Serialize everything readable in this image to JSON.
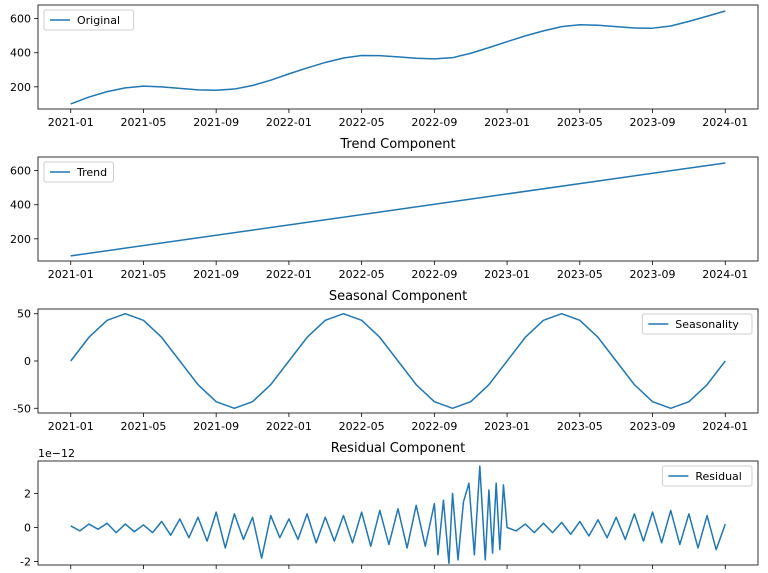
{
  "figure": {
    "line_color": "#1f77b4",
    "x_ticks": [
      "2021-01",
      "2021-05",
      "2021-09",
      "2022-01",
      "2022-05",
      "2022-09",
      "2023-01",
      "2023-05",
      "2023-09",
      "2024-01"
    ],
    "x_ticks_num": [
      0,
      4,
      8,
      12,
      16,
      20,
      24,
      28,
      32,
      36
    ]
  },
  "chart_data": [
    {
      "type": "line",
      "title": "Original",
      "xlabel": "",
      "ylabel": "",
      "ylim": [
        70,
        680
      ],
      "y_ticks": [
        200,
        400,
        600
      ],
      "legend": "top-left",
      "series": [
        {
          "name": "Original",
          "x": [
            0,
            1,
            2,
            3,
            4,
            5,
            6,
            7,
            8,
            9,
            10,
            11,
            12,
            13,
            14,
            15,
            16,
            17,
            18,
            19,
            20,
            21,
            22,
            23,
            24,
            25,
            26,
            27,
            28,
            29,
            30,
            31,
            32,
            33,
            34,
            35,
            36
          ],
          "values": [
            100,
            140,
            172,
            194,
            204,
            200,
            191,
            182,
            180,
            187,
            208,
            239,
            276,
            311,
            343,
            369,
            384,
            383,
            376,
            368,
            364,
            371,
            397,
            430,
            465,
            499,
            528,
            553,
            564,
            561,
            553,
            545,
            544,
            557,
            584,
            614,
            645
          ]
        }
      ]
    },
    {
      "type": "line",
      "title": "Trend Component",
      "xlabel": "",
      "ylabel": "",
      "ylim": [
        70,
        680
      ],
      "y_ticks": [
        200,
        400,
        600
      ],
      "legend": "top-left",
      "series": [
        {
          "name": "Trend",
          "x": [
            0,
            36
          ],
          "values": [
            100,
            645
          ]
        }
      ]
    },
    {
      "type": "line",
      "title": "Seasonal Component",
      "xlabel": "",
      "ylabel": "",
      "ylim": [
        -55,
        55
      ],
      "y_ticks": [
        -50,
        0,
        50
      ],
      "legend": "top-right",
      "series": [
        {
          "name": "Seasonality",
          "x": [
            0,
            1,
            2,
            3,
            4,
            5,
            6,
            7,
            8,
            9,
            10,
            11,
            12,
            13,
            14,
            15,
            16,
            17,
            18,
            19,
            20,
            21,
            22,
            23,
            24,
            25,
            26,
            27,
            28,
            29,
            30,
            31,
            32,
            33,
            34,
            35,
            36
          ],
          "values": [
            0,
            25,
            43,
            50,
            43,
            25,
            0,
            -25,
            -43,
            -50,
            -43,
            -25,
            0,
            25,
            43,
            50,
            43,
            25,
            0,
            -25,
            -43,
            -50,
            -43,
            -25,
            0,
            25,
            43,
            50,
            43,
            25,
            0,
            -25,
            -43,
            -50,
            -43,
            -25,
            0
          ]
        }
      ]
    },
    {
      "type": "line",
      "title": "Residual Component",
      "xlabel": "",
      "ylabel": "",
      "y_scale_label": "1e−12",
      "ylim": [
        -2.2,
        3.9
      ],
      "y_ticks": [
        -2,
        0,
        2
      ],
      "legend": "top-right",
      "series": [
        {
          "name": "Residual",
          "x": [
            0,
            0.5,
            1,
            1.5,
            2,
            2.5,
            3,
            3.5,
            4,
            4.5,
            5,
            5.5,
            6,
            6.5,
            7,
            7.5,
            8,
            8.5,
            9,
            9.5,
            10,
            10.5,
            11,
            11.5,
            12,
            12.5,
            13,
            13.5,
            14,
            14.5,
            15,
            15.5,
            16,
            16.5,
            17,
            17.5,
            18,
            18.5,
            19,
            19.5,
            20,
            20.2,
            20.5,
            20.8,
            21,
            21.3,
            21.6,
            21.9,
            22.2,
            22.5,
            22.8,
            23,
            23.2,
            23.4,
            23.6,
            23.8,
            24,
            24.5,
            25,
            25.5,
            26,
            26.5,
            27,
            27.5,
            28,
            28.5,
            29,
            29.5,
            30,
            30.5,
            31,
            31.5,
            32,
            32.5,
            33,
            33.5,
            34,
            34.5,
            35,
            35.5,
            36
          ],
          "values": [
            0.1,
            -0.2,
            0.2,
            -0.1,
            0.25,
            -0.3,
            0.2,
            -0.25,
            0.15,
            -0.3,
            0.35,
            -0.45,
            0.5,
            -0.6,
            0.6,
            -0.8,
            0.9,
            -1.2,
            0.8,
            -0.7,
            0.6,
            -1.8,
            0.7,
            -0.6,
            0.5,
            -0.7,
            0.8,
            -0.9,
            0.6,
            -0.8,
            0.7,
            -0.9,
            0.9,
            -1.1,
            1.0,
            -1.0,
            1.1,
            -1.2,
            1.3,
            -1.1,
            1.4,
            -1.6,
            1.6,
            -2.1,
            2.0,
            -1.9,
            1.5,
            2.6,
            -1.6,
            3.6,
            -1.9,
            2.2,
            -1.5,
            2.6,
            -1.3,
            2.5,
            0.0,
            -0.2,
            0.2,
            -0.3,
            0.25,
            -0.3,
            0.3,
            -0.4,
            0.35,
            -0.5,
            0.45,
            -0.6,
            0.6,
            -0.7,
            0.8,
            -0.8,
            0.9,
            -0.9,
            1.0,
            -1.0,
            0.8,
            -1.2,
            0.7,
            -1.3,
            0.2
          ]
        }
      ]
    }
  ]
}
